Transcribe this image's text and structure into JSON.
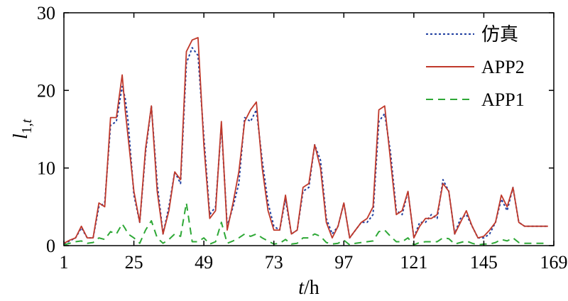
{
  "chart_data": {
    "type": "line",
    "title": "",
    "xlabel": {
      "italic": "t",
      "rest": "/h"
    },
    "ylabel": {
      "main": "l",
      "sub": "1,",
      "subitalic": "t"
    },
    "xlim": [
      1,
      169
    ],
    "ylim": [
      0,
      30
    ],
    "x_ticks": [
      1,
      25,
      49,
      73,
      97,
      121,
      145,
      169
    ],
    "y_ticks": [
      0,
      10,
      20,
      30
    ],
    "grid": false,
    "legend_position": "top-right",
    "series": [
      {
        "name": "仿真",
        "color": "#1f3fa0",
        "style": "dotted",
        "x": [
          1,
          3,
          5,
          7,
          9,
          11,
          13,
          15,
          17,
          19,
          21,
          22,
          23,
          25,
          27,
          29,
          31,
          33,
          35,
          37,
          39,
          41,
          43,
          45,
          47,
          49,
          51,
          53,
          55,
          57,
          59,
          61,
          63,
          65,
          67,
          69,
          71,
          73,
          75,
          77,
          79,
          81,
          83,
          85,
          87,
          89,
          91,
          93,
          95,
          97,
          99,
          101,
          103,
          105,
          107,
          109,
          111,
          113,
          115,
          117,
          119,
          121,
          123,
          125,
          127,
          129,
          131,
          133,
          135,
          137,
          139,
          141,
          143,
          145,
          147,
          149,
          151,
          153,
          155,
          157,
          159,
          161,
          163,
          165,
          167
        ],
        "values": [
          0.2,
          0.6,
          1.0,
          2.3,
          1.0,
          1.0,
          5.0,
          5.5,
          15.5,
          16.0,
          20.5,
          19.0,
          16.0,
          6.5,
          3.0,
          12.0,
          18.0,
          8.0,
          1.5,
          5.0,
          9.5,
          8.0,
          23.5,
          25.5,
          24.5,
          14.0,
          4.0,
          5.0,
          15.5,
          2.5,
          5.0,
          8.0,
          16.5,
          16.0,
          17.5,
          11.0,
          5.5,
          2.5,
          2.0,
          6.0,
          1.5,
          2.0,
          7.0,
          7.5,
          13.0,
          11.0,
          3.5,
          1.5,
          2.5,
          5.5,
          1.0,
          2.0,
          3.0,
          3.0,
          4.0,
          16.0,
          17.0,
          12.0,
          4.5,
          4.0,
          7.0,
          1.0,
          3.0,
          3.0,
          4.0,
          3.5,
          8.5,
          7.0,
          1.5,
          3.5,
          4.0,
          2.5,
          1.0,
          1.0,
          1.5,
          3.0,
          6.0,
          4.5,
          7.5,
          3.0,
          2.5,
          2.5,
          2.5,
          2.5,
          2.5
        ]
      },
      {
        "name": "APP2",
        "color": "#c0392b",
        "style": "solid",
        "x": [
          1,
          3,
          5,
          7,
          9,
          11,
          13,
          15,
          17,
          19,
          21,
          22,
          23,
          25,
          27,
          29,
          31,
          33,
          35,
          37,
          39,
          41,
          43,
          45,
          47,
          49,
          51,
          53,
          55,
          57,
          59,
          61,
          63,
          65,
          67,
          69,
          71,
          73,
          75,
          77,
          79,
          81,
          83,
          85,
          87,
          89,
          91,
          93,
          95,
          97,
          99,
          101,
          103,
          105,
          107,
          109,
          111,
          113,
          115,
          117,
          119,
          121,
          123,
          125,
          127,
          129,
          131,
          133,
          135,
          137,
          139,
          141,
          143,
          145,
          147,
          149,
          151,
          153,
          155,
          157,
          159,
          161,
          163,
          165,
          167
        ],
        "values": [
          0.3,
          0.7,
          1.0,
          2.5,
          1.0,
          1.0,
          5.5,
          5.0,
          16.5,
          16.5,
          22.0,
          17.5,
          14.0,
          7.0,
          3.0,
          12.5,
          18.0,
          7.0,
          1.5,
          4.5,
          9.5,
          8.5,
          25.0,
          26.5,
          26.8,
          13.0,
          3.5,
          4.5,
          16.0,
          2.0,
          5.5,
          9.5,
          16.0,
          17.5,
          18.5,
          10.0,
          4.5,
          2.0,
          2.0,
          6.5,
          1.5,
          2.0,
          7.5,
          8.0,
          13.0,
          10.0,
          3.0,
          1.0,
          2.5,
          5.5,
          1.0,
          2.0,
          3.0,
          3.5,
          5.0,
          17.5,
          18.0,
          11.0,
          4.0,
          4.5,
          7.0,
          1.0,
          2.5,
          3.5,
          3.5,
          4.0,
          8.0,
          7.0,
          1.5,
          3.0,
          4.5,
          2.5,
          1.0,
          1.2,
          2.0,
          3.0,
          6.5,
          5.0,
          7.5,
          3.0,
          2.5,
          2.5,
          2.5,
          2.5,
          2.5
        ]
      },
      {
        "name": "APP1",
        "color": "#2ea836",
        "style": "dashed",
        "x": [
          1,
          3,
          5,
          7,
          9,
          11,
          13,
          15,
          17,
          19,
          21,
          22,
          23,
          25,
          27,
          29,
          31,
          33,
          35,
          37,
          39,
          41,
          43,
          45,
          47,
          49,
          51,
          53,
          55,
          57,
          59,
          61,
          63,
          65,
          67,
          69,
          71,
          73,
          75,
          77,
          79,
          81,
          83,
          85,
          87,
          89,
          91,
          93,
          95,
          97,
          99,
          101,
          103,
          105,
          107,
          109,
          111,
          113,
          115,
          117,
          119,
          121,
          123,
          125,
          127,
          129,
          131,
          133,
          135,
          137,
          139,
          141,
          143,
          145,
          147,
          149,
          151,
          153,
          155,
          157,
          159,
          161,
          163,
          165,
          167
        ],
        "values": [
          0.1,
          0.3,
          0.5,
          0.6,
          0.3,
          0.4,
          1.0,
          0.8,
          1.8,
          1.5,
          2.8,
          2.2,
          1.5,
          1.0,
          0.3,
          2.0,
          3.2,
          1.0,
          0.3,
          0.8,
          1.5,
          1.2,
          5.5,
          0.5,
          0.5,
          1.0,
          0.2,
          0.5,
          3.0,
          0.3,
          0.6,
          1.0,
          1.5,
          1.2,
          1.5,
          1.0,
          0.6,
          0.2,
          0.3,
          0.8,
          0.2,
          0.3,
          1.0,
          1.0,
          1.5,
          1.2,
          0.4,
          0.2,
          0.3,
          0.7,
          0.1,
          0.3,
          0.4,
          0.5,
          0.6,
          1.8,
          2.0,
          1.2,
          0.5,
          0.5,
          1.0,
          0.1,
          0.4,
          0.5,
          0.5,
          0.5,
          1.0,
          0.9,
          0.2,
          0.4,
          0.6,
          0.3,
          0.1,
          0.2,
          0.2,
          0.4,
          0.8,
          0.6,
          1.0,
          0.4,
          0.3,
          0.3,
          0.3,
          0.3,
          0.3
        ]
      }
    ]
  }
}
